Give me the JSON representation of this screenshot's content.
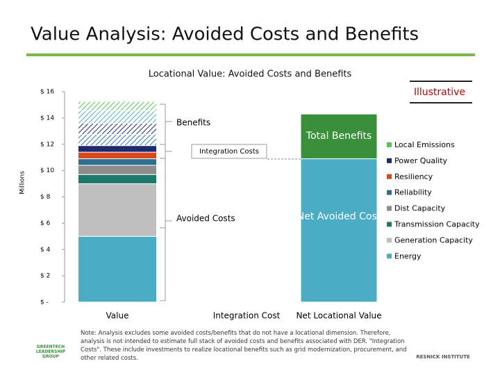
{
  "header": {
    "title": "Value Analysis: Avoided Costs and Benefits"
  },
  "chart_data": {
    "type": "bar",
    "stacked": true,
    "title": "Locational Value: Avoided Costs and Benefits",
    "badge": "Illustrative",
    "ylabel": "Millions",
    "categories": [
      "Value",
      "Integration Cost",
      "Net Locational Value"
    ],
    "ylim": [
      0,
      16
    ],
    "yticks": [
      {
        "value": 0,
        "label": "$ -"
      },
      {
        "value": 2,
        "label": "$ 2"
      },
      {
        "value": 4,
        "label": "$ 4"
      },
      {
        "value": 6,
        "label": "$ 6"
      },
      {
        "value": 8,
        "label": "$ 8"
      },
      {
        "value": 10,
        "label": "$ 10"
      },
      {
        "value": 12,
        "label": "$ 12"
      },
      {
        "value": 14,
        "label": "$ 14"
      },
      {
        "value": 16,
        "label": "$ 16"
      }
    ],
    "series": [
      {
        "name": "Energy",
        "color": "#4bacc6",
        "values": [
          5,
          null,
          null
        ]
      },
      {
        "name": "Generation Capacity",
        "color": "#bfbfbf",
        "values": [
          4,
          null,
          null
        ]
      },
      {
        "name": "Transmission Capacity",
        "color": "#1b7a6b",
        "values": [
          0.7,
          null,
          null
        ]
      },
      {
        "name": "Dist Capacity",
        "color": "#8c8c8c",
        "values": [
          0.7,
          null,
          null
        ]
      },
      {
        "name": "Reliability",
        "color": "#2e6f8e",
        "values": [
          0.5,
          null,
          null
        ]
      },
      {
        "name": "Resiliency",
        "color": "#d9481c",
        "values": [
          0.5,
          null,
          null
        ]
      },
      {
        "name": "Power Quality",
        "color": "#1f2a6e",
        "values": [
          0.5,
          null,
          null
        ]
      },
      {
        "name": "Local Emissions",
        "color": "#4ecb4e",
        "values": [
          null,
          null,
          null
        ]
      }
    ],
    "benefit_segments": [
      {
        "color": "#2e75b6",
        "values": [
          0.85,
          null,
          null
        ]
      },
      {
        "color": "#1f2a6e",
        "values": [
          0.85,
          null,
          null
        ]
      },
      {
        "color": "#4bacc6",
        "values": [
          0.95,
          null,
          null
        ]
      },
      {
        "color": "#4ecb4e",
        "values": [
          0.7,
          null,
          null
        ]
      }
    ],
    "blocks": [
      {
        "name": "Net Avoided Cost",
        "color": "#4bacc6",
        "values": [
          null,
          null,
          10.9
        ]
      },
      {
        "name": "Total Benefits",
        "color": "#3a8f3a",
        "values": [
          null,
          null,
          3.4
        ]
      }
    ],
    "annotations": [
      "Benefits",
      "Integration Costs",
      "Avoided Costs"
    ],
    "note": "Note: Analysis excludes some avoided costs/benefits that do not have a locational dimension. Therefore, analysis is not intended to estimate full stack of avoided costs and benefits associated with DER. \"Integration Costs\". These include investments to realize locational benefits such as grid modernization, procurement, and other related costs."
  },
  "logos": [
    "GREENTECH LEADERSHIP GROUP",
    "RESNICK INSTITUTE"
  ]
}
